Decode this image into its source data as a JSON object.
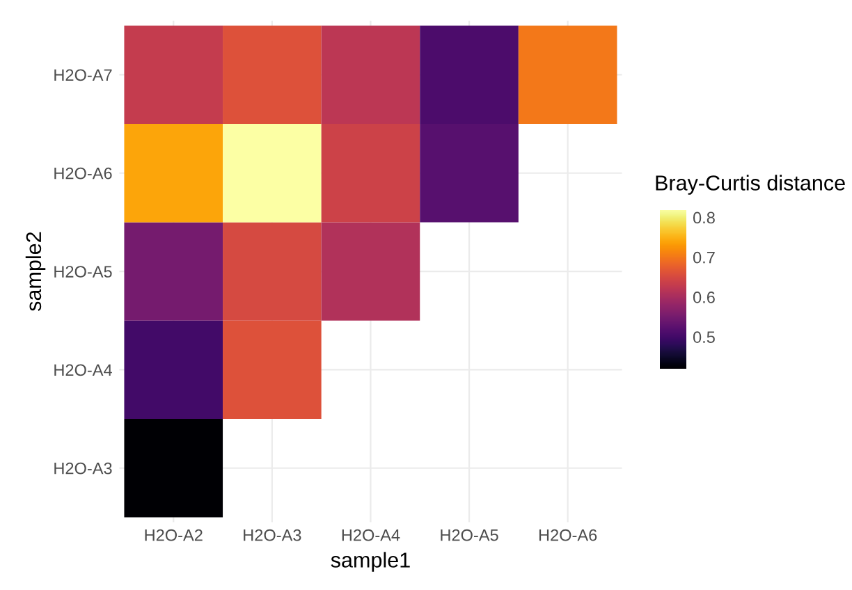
{
  "chart_data": {
    "type": "heatmap",
    "xlabel": "sample1",
    "ylabel": "sample2",
    "clabel": "Bray-Curtis distance",
    "categories": [
      "H2O-A2",
      "H2O-A3",
      "H2O-A4",
      "H2O-A5",
      "H2O-A6"
    ],
    "y_categories": [
      "H2O-A7",
      "H2O-A6",
      "H2O-A5",
      "H2O-A4",
      "H2O-A3"
    ],
    "cells": [
      [
        0.63,
        0.66,
        0.62,
        0.51,
        0.7
      ],
      [
        0.74,
        0.82,
        0.64,
        0.52,
        null
      ],
      [
        0.55,
        0.65,
        0.61,
        null,
        null
      ],
      [
        0.5,
        0.66,
        null,
        null,
        null
      ],
      [
        0.42,
        null,
        null,
        null,
        null
      ]
    ],
    "clim": [
      0.42,
      0.82
    ],
    "cticks": [
      0.5,
      0.6,
      0.7,
      0.8
    ],
    "grid": true
  }
}
